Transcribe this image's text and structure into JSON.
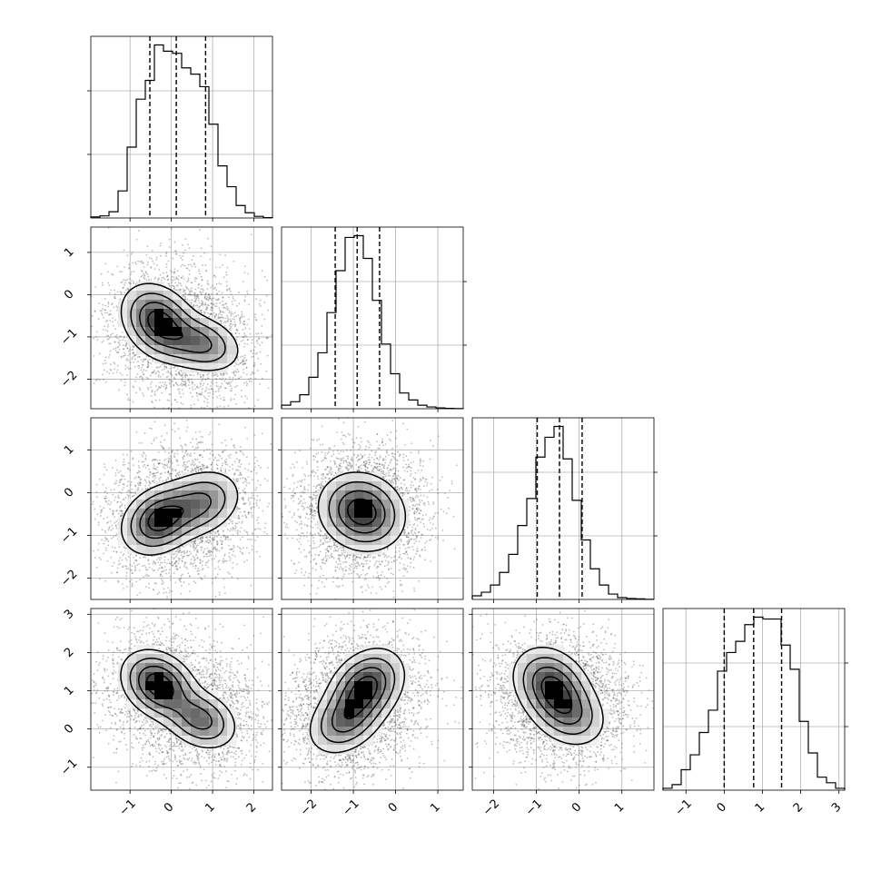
{
  "chart_data": {
    "type": "corner",
    "dimensions": 4,
    "axes": [
      {
        "range": [
          -1.95,
          2.45
        ],
        "ticks": [
          -1,
          0,
          1,
          2
        ],
        "tick_labels": [
          "−1",
          "0",
          "1",
          "2"
        ]
      },
      {
        "range": [
          -2.7,
          1.6
        ],
        "ticks": [
          -2,
          -1,
          0,
          1
        ],
        "tick_labels": [
          "−2",
          "−1",
          "0",
          "1"
        ]
      },
      {
        "range": [
          -2.5,
          1.75
        ],
        "ticks": [
          -2,
          -1,
          0,
          1
        ],
        "tick_labels": [
          "−2",
          "−1",
          "0",
          "1"
        ]
      },
      {
        "range": [
          -1.6,
          3.15
        ],
        "ticks": [
          -1,
          0,
          1,
          2,
          3
        ],
        "tick_labels": [
          "−1",
          "0",
          "1",
          "2",
          "3"
        ]
      }
    ],
    "grid": true,
    "diagonal_histograms": [
      {
        "param": 0,
        "bin_edges": [
          -1.95,
          -1.73,
          -1.51,
          -1.29,
          -1.07,
          -0.85,
          -0.63,
          -0.41,
          -0.19,
          0.03,
          0.25,
          0.47,
          0.69,
          0.91,
          1.13,
          1.35,
          1.57,
          1.79,
          2.01,
          2.23,
          2.45
        ],
        "counts": [
          0.005,
          0.01,
          0.03,
          0.13,
          0.34,
          0.57,
          0.66,
          0.83,
          0.8,
          0.79,
          0.72,
          0.69,
          0.63,
          0.45,
          0.25,
          0.15,
          0.06,
          0.025,
          0.008,
          0.002
        ],
        "ymax": 0.83,
        "quantiles": [
          -0.52,
          0.12,
          0.83
        ]
      },
      {
        "param": 1,
        "bin_edges": [
          -2.7,
          -2.485,
          -2.27,
          -2.055,
          -1.84,
          -1.625,
          -1.41,
          -1.195,
          -0.98,
          -0.765,
          -0.55,
          -0.335,
          -0.12,
          0.095,
          0.31,
          0.525,
          0.74,
          0.955,
          1.17,
          1.385,
          1.6
        ],
        "counts": [
          0.02,
          0.04,
          0.08,
          0.18,
          0.32,
          0.55,
          0.79,
          0.98,
          0.99,
          0.86,
          0.62,
          0.37,
          0.2,
          0.09,
          0.05,
          0.02,
          0.01,
          0.005,
          0.002,
          0.001
        ],
        "ymax": 0.99,
        "quantiles": [
          -1.43,
          -0.91,
          -0.38
        ]
      },
      {
        "param": 2,
        "bin_edges": [
          -2.5,
          -2.2875,
          -2.075,
          -1.8625,
          -1.65,
          -1.4375,
          -1.225,
          -1.0125,
          -0.8,
          -0.5875,
          -0.375,
          -0.1625,
          0.05,
          0.2625,
          0.475,
          0.6875,
          0.9,
          1.1125,
          1.325,
          1.5375,
          1.75
        ],
        "counts": [
          0.02,
          0.04,
          0.08,
          0.15,
          0.25,
          0.41,
          0.56,
          0.79,
          0.9,
          0.96,
          0.78,
          0.55,
          0.33,
          0.17,
          0.08,
          0.03,
          0.01,
          0.005,
          0.003,
          0.001
        ],
        "ymax": 0.96,
        "quantiles": [
          -0.98,
          -0.46,
          0.07
        ]
      },
      {
        "param": 3,
        "bin_edges": [
          -1.6,
          -1.3625,
          -1.125,
          -0.8875,
          -0.65,
          -0.4125,
          -0.175,
          0.0625,
          0.3,
          0.5375,
          0.775,
          1.0125,
          1.25,
          1.4875,
          1.725,
          1.9625,
          2.2,
          2.4375,
          2.675,
          2.9125,
          3.15
        ],
        "counts": [
          0.01,
          0.03,
          0.11,
          0.19,
          0.31,
          0.43,
          0.64,
          0.74,
          0.8,
          0.89,
          0.93,
          0.92,
          0.92,
          0.78,
          0.65,
          0.37,
          0.2,
          0.07,
          0.04,
          0.01
        ],
        "ymax": 0.93,
        "quantiles": [
          0.0,
          0.77,
          1.5
        ]
      }
    ],
    "pair_densities": [
      {
        "x": 0,
        "y": 1,
        "corr": -0.45,
        "modes": [
          [
            -0.3,
            -0.65
          ],
          [
            0.7,
            -1.15
          ]
        ],
        "mode_weights": [
          0.6,
          0.4
        ],
        "spreads": [
          [
            0.45,
            0.45
          ],
          [
            0.5,
            0.35
          ]
        ]
      },
      {
        "x": 0,
        "y": 2,
        "corr": 0.4,
        "modes": [
          [
            -0.3,
            -0.65
          ],
          [
            0.7,
            -0.25
          ]
        ],
        "mode_weights": [
          0.6,
          0.4
        ],
        "spreads": [
          [
            0.45,
            0.4
          ],
          [
            0.5,
            0.4
          ]
        ]
      },
      {
        "x": 1,
        "y": 2,
        "corr": -0.2,
        "modes": [
          [
            -0.8,
            -0.45
          ]
        ],
        "mode_weights": [
          1.0
        ],
        "spreads": [
          [
            0.5,
            0.45
          ]
        ]
      },
      {
        "x": 0,
        "y": 3,
        "corr": -0.45,
        "modes": [
          [
            -0.3,
            1.15
          ],
          [
            0.7,
            0.25
          ]
        ],
        "mode_weights": [
          0.6,
          0.4
        ],
        "spreads": [
          [
            0.45,
            0.45
          ],
          [
            0.45,
            0.4
          ]
        ]
      },
      {
        "x": 1,
        "y": 3,
        "corr": 0.5,
        "modes": [
          [
            -0.7,
            1.1
          ],
          [
            -1.2,
            0.2
          ]
        ],
        "mode_weights": [
          0.6,
          0.4
        ],
        "spreads": [
          [
            0.45,
            0.5
          ],
          [
            0.45,
            0.45
          ]
        ]
      },
      {
        "x": 2,
        "y": 3,
        "corr": -0.4,
        "modes": [
          [
            -0.65,
            1.15
          ],
          [
            -0.25,
            0.4
          ]
        ],
        "mode_weights": [
          0.6,
          0.4
        ],
        "spreads": [
          [
            0.45,
            0.5
          ],
          [
            0.45,
            0.45
          ]
        ]
      }
    ],
    "contour_levels": [
      0.12,
      0.3,
      0.55,
      0.8
    ]
  }
}
